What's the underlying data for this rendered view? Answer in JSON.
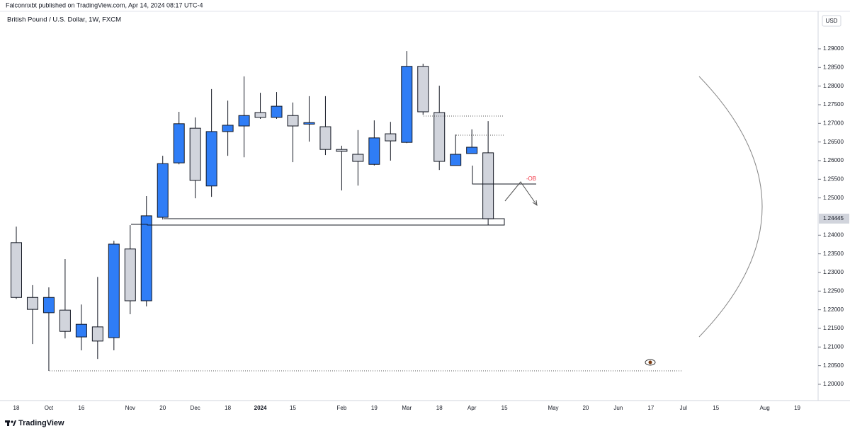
{
  "header": "Falconnxbt published on TradingView.com, Apr 14, 2024 08:17 UTC-4",
  "footer": "TradingView",
  "chart_data": {
    "type": "candlestick",
    "title": "British Pound / U.S. Dollar, 1W, FXCM",
    "currency": "USD",
    "categories": [
      "18",
      null,
      "Oct",
      null,
      "16",
      null,
      null,
      "Nov",
      null,
      "20",
      null,
      "Dec",
      null,
      "18",
      null,
      "2024",
      null,
      "15",
      null,
      null,
      "Feb",
      null,
      "19",
      null,
      "Mar",
      null,
      "18",
      null,
      "Apr",
      null,
      "15",
      null,
      null,
      "May",
      null,
      "20",
      null,
      "Jun",
      null,
      "17",
      null,
      "Jul",
      null,
      "15",
      null,
      null,
      "Aug",
      null,
      "19"
    ],
    "open": [
      1.238,
      1.2233,
      1.2192,
      1.2199,
      1.2127,
      1.2154,
      1.2125,
      1.2363,
      1.2224,
      1.2448,
      1.2594,
      1.2687,
      1.2532,
      1.2678,
      1.2693,
      1.2729,
      1.2716,
      1.2721,
      1.2698,
      1.2691,
      1.263,
      1.2617,
      1.259,
      1.2672,
      1.2649,
      1.2853,
      1.2729,
      1.2587,
      1.2619,
      1.2621,
      null,
      null,
      null,
      null,
      null,
      null,
      null,
      null,
      null,
      null,
      null,
      null,
      null,
      null,
      null,
      null,
      null,
      null,
      null
    ],
    "high": [
      1.2423,
      1.2266,
      1.226,
      1.2336,
      1.2214,
      1.2288,
      1.2385,
      1.2427,
      1.2505,
      1.2613,
      1.2731,
      1.2716,
      1.2792,
      1.2761,
      1.2826,
      1.2782,
      1.2784,
      1.2756,
      1.2773,
      1.2773,
      1.264,
      1.2682,
      1.2708,
      1.2704,
      1.2894,
      1.286,
      1.2801,
      1.267,
      1.2684,
      1.2706,
      null,
      null,
      null,
      null,
      null,
      null,
      null,
      null,
      null,
      null,
      null,
      null,
      null,
      null,
      null,
      null,
      null,
      null,
      null
    ],
    "low": [
      1.2229,
      1.2108,
      1.2036,
      1.2123,
      1.2091,
      1.2068,
      1.2091,
      1.2188,
      1.2209,
      1.2442,
      1.259,
      1.2499,
      1.2503,
      1.2613,
      1.2609,
      1.2712,
      1.2712,
      1.2596,
      1.2651,
      1.2615,
      1.252,
      1.2533,
      1.2587,
      1.26,
      1.2647,
      1.2723,
      1.2575,
      1.2587,
      1.2619,
      1.2427,
      null,
      null,
      null,
      null,
      null,
      null,
      null,
      null,
      null,
      null,
      null,
      null,
      null,
      null,
      null,
      null,
      null,
      null,
      null
    ],
    "close": [
      1.2233,
      1.2201,
      1.2233,
      1.2142,
      1.2161,
      1.2116,
      1.2376,
      1.2224,
      1.2452,
      1.2592,
      1.2699,
      1.2547,
      1.2678,
      1.2695,
      1.2721,
      1.2716,
      1.2746,
      1.2693,
      1.2702,
      1.263,
      1.2625,
      1.2598,
      1.2661,
      1.2653,
      1.2853,
      1.2731,
      1.2598,
      1.2617,
      1.2636,
      1.2444,
      null,
      null,
      null,
      null,
      null,
      null,
      null,
      null,
      null,
      null,
      null,
      null,
      null,
      null,
      null,
      null,
      null,
      null,
      null
    ],
    "up_color": "#2f7df6",
    "down_color": "#d1d4dc",
    "last_price": 1.24445,
    "annotations": [
      "-OB"
    ],
    "ylim": [
      1.1962,
      1.2974
    ],
    "yticks": [
      {
        "value": 1.2,
        "label": "1.20000"
      },
      {
        "value": 1.205,
        "label": "1.20500"
      },
      {
        "value": 1.21,
        "label": "1.21000"
      },
      {
        "value": 1.215,
        "label": "1.21500"
      },
      {
        "value": 1.22,
        "label": "1.22000"
      },
      {
        "value": 1.225,
        "label": "1.22500"
      },
      {
        "value": 1.23,
        "label": "1.23000"
      },
      {
        "value": 1.235,
        "label": "1.23500"
      },
      {
        "value": 1.24,
        "label": "1.24000"
      },
      {
        "value": 1.25,
        "label": "1.25000"
      },
      {
        "value": 1.255,
        "label": "1.25500"
      },
      {
        "value": 1.26,
        "label": "1.26000"
      },
      {
        "value": 1.265,
        "label": "1.26500"
      },
      {
        "value": 1.27,
        "label": "1.27000"
      },
      {
        "value": 1.275,
        "label": "1.27500"
      },
      {
        "value": 1.28,
        "label": "1.28000"
      },
      {
        "value": 1.285,
        "label": "1.28500"
      },
      {
        "value": 1.29,
        "label": "1.29000"
      }
    ]
  }
}
